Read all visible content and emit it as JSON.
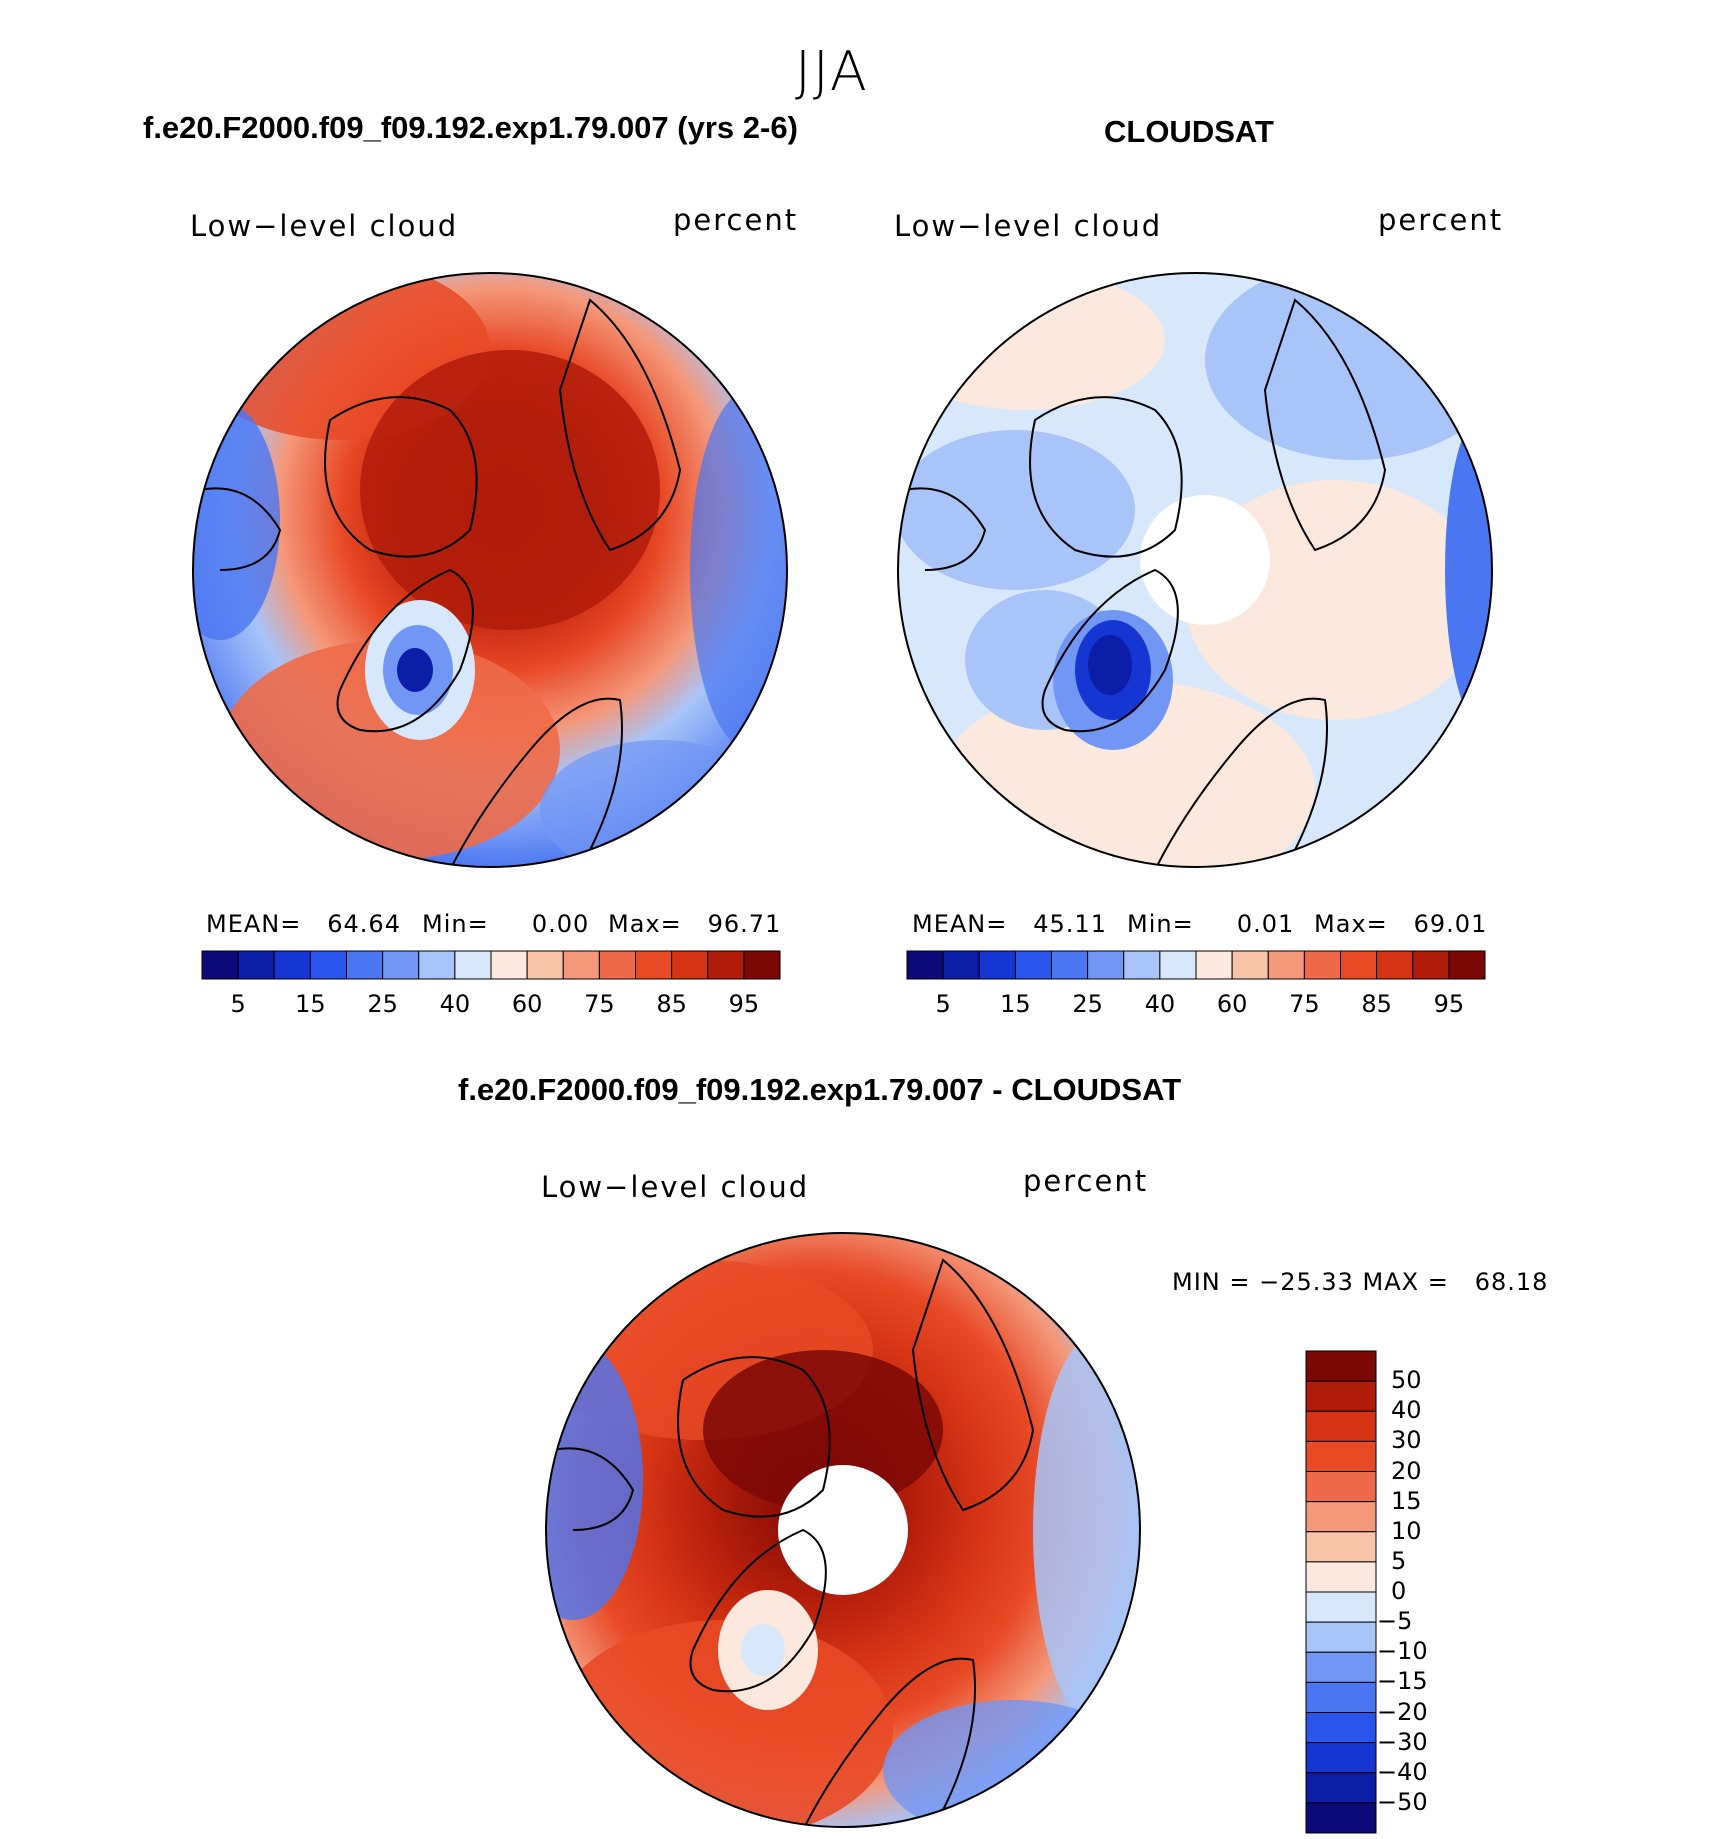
{
  "season": "JJA",
  "panels": [
    {
      "title": "f.e20.F2000.f09_f09.192.exp1.79.007 (yrs 2-6)",
      "field_label": "Low−level cloud",
      "units": "percent",
      "stats": {
        "mean_label": "MEAN=",
        "mean": "64.64",
        "min_label": "Min=",
        "min": "0.00",
        "max_label": "Max=",
        "max": "96.71"
      },
      "colorbar_ticks": [
        "5",
        "15",
        "25",
        "40",
        "60",
        "75",
        "85",
        "95"
      ],
      "contour_levels": [
        5,
        10,
        15,
        20,
        25,
        30,
        40,
        50,
        60,
        65,
        75,
        80,
        85,
        90,
        95
      ]
    },
    {
      "title": "CLOUDSAT",
      "field_label": "Low−level cloud",
      "units": "percent",
      "stats": {
        "mean_label": "MEAN=",
        "mean": "45.11",
        "min_label": "Min=",
        "min": "0.01",
        "max_label": "Max=",
        "max": "69.01"
      },
      "colorbar_ticks": [
        "5",
        "15",
        "25",
        "40",
        "60",
        "75",
        "85",
        "95"
      ],
      "contour_levels": [
        5,
        10,
        15,
        20,
        25,
        30,
        40,
        50,
        60,
        65,
        75,
        80,
        85,
        90,
        95
      ]
    }
  ],
  "difference": {
    "title": "f.e20.F2000.f09_f09.192.exp1.79.007 - CLOUDSAT",
    "field_label": "Low−level cloud",
    "units": "percent",
    "minmax": "MIN = −25.33 MAX =   68.18",
    "colorbar_ticks": [
      "50",
      "40",
      "30",
      "20",
      "15",
      "10",
      "5",
      "0",
      "−5",
      "−10",
      "−15",
      "−20",
      "−30",
      "−40",
      "−50"
    ]
  },
  "colors": {
    "scale16": [
      "#0a0a78",
      "#0c1ea8",
      "#1636d4",
      "#2a55ec",
      "#4a76f2",
      "#7296f4",
      "#a8c4f8",
      "#d8e8fc",
      "#fce8dc",
      "#f8c4a8",
      "#f4987a",
      "#ee6a48",
      "#e84a26",
      "#d43414",
      "#b01c0a",
      "#7c0806"
    ]
  }
}
